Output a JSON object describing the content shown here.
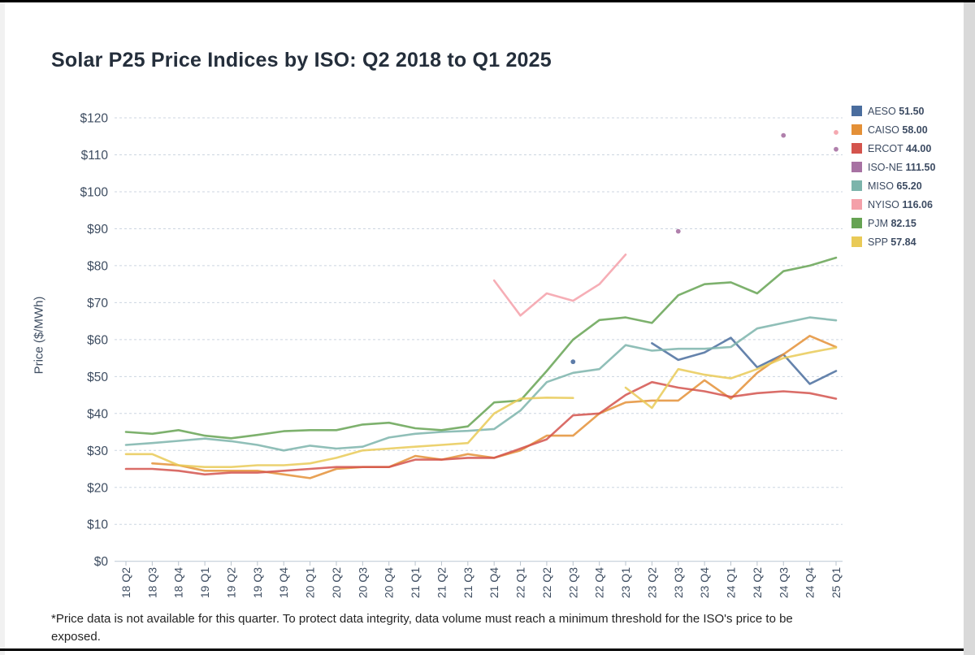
{
  "page": {
    "footnote_line1": "*Price data is not available for this quarter. To protect data integrity, data volume must reach a minimum threshold for the ISO's price to be",
    "footnote_line2": "exposed."
  },
  "chart_data": {
    "type": "line",
    "title": "Solar P25 Price Indices by ISO: Q2 2018 to Q1 2025",
    "xlabel": "",
    "ylabel": "Price ($/MWh)",
    "ylim": [
      0,
      120
    ],
    "grid": true,
    "legend_position": "right",
    "y_ticks": [
      "$0",
      "$10",
      "$20",
      "$30",
      "$40",
      "$50",
      "$60",
      "$70",
      "$80",
      "$90",
      "$100",
      "$110",
      "$120"
    ],
    "categories": [
      "18 Q2",
      "18 Q3",
      "18 Q4",
      "19 Q1",
      "19 Q2",
      "19 Q3",
      "19 Q4",
      "20 Q1",
      "20 Q2",
      "20 Q3",
      "20 Q4",
      "21 Q1",
      "21 Q2",
      "21 Q3",
      "21 Q4",
      "22 Q1",
      "22 Q2",
      "22 Q3",
      "22 Q4",
      "23 Q1",
      "23 Q2",
      "23 Q3",
      "23 Q4",
      "24 Q1",
      "24 Q2",
      "24 Q3",
      "24 Q4",
      "25 Q1"
    ],
    "series": [
      {
        "name": "AESO",
        "legend_value": "51.50",
        "color": "#4a6d9e",
        "values": [
          null,
          null,
          null,
          null,
          null,
          null,
          null,
          null,
          null,
          null,
          null,
          null,
          null,
          null,
          null,
          null,
          null,
          54,
          null,
          null,
          59,
          54.5,
          56.5,
          60.5,
          52.5,
          56,
          48,
          51.5
        ]
      },
      {
        "name": "CAISO",
        "legend_value": "58.00",
        "color": "#e49037",
        "values": [
          null,
          26.5,
          26,
          24.5,
          24.5,
          24.5,
          23.5,
          22.5,
          25,
          25.5,
          25.5,
          28.5,
          27.5,
          29,
          28,
          30,
          34,
          34,
          40,
          43,
          43.5,
          43.5,
          49,
          44,
          51,
          56,
          61,
          58
        ]
      },
      {
        "name": "ERCOT",
        "legend_value": "44.00",
        "color": "#d4544d",
        "values": [
          25,
          25,
          24.5,
          23.5,
          24,
          24,
          24.5,
          25,
          25.5,
          25.5,
          25.5,
          27.5,
          27.5,
          28,
          28,
          30.5,
          33,
          39.5,
          40,
          45,
          48.5,
          47,
          46,
          44.5,
          45.5,
          46,
          45.5,
          44
        ]
      },
      {
        "name": "ISO-NE",
        "legend_value": "111.50",
        "color": "#a772a3",
        "values": [
          null,
          null,
          null,
          null,
          null,
          null,
          null,
          null,
          null,
          null,
          null,
          null,
          null,
          null,
          null,
          null,
          null,
          null,
          null,
          null,
          null,
          89.3,
          null,
          null,
          null,
          115.25,
          null,
          111.5
        ]
      },
      {
        "name": "MISO",
        "legend_value": "65.20",
        "color": "#7cb4ab",
        "values": [
          31.5,
          32,
          32.6,
          33.2,
          32.5,
          31.5,
          30,
          31.3,
          30.5,
          31,
          33.5,
          34.5,
          35,
          35.3,
          35.8,
          40.8,
          48.5,
          51,
          52,
          58.5,
          57,
          57.5,
          57.5,
          58,
          63,
          64.5,
          66,
          65.2
        ]
      },
      {
        "name": "NYISO",
        "legend_value": "116.06",
        "color": "#f4a0a9",
        "values": [
          null,
          null,
          null,
          null,
          null,
          null,
          null,
          null,
          null,
          null,
          null,
          null,
          null,
          null,
          76,
          66.5,
          72.5,
          70.5,
          75,
          83,
          null,
          null,
          null,
          null,
          null,
          null,
          null,
          116.06
        ]
      },
      {
        "name": "PJM",
        "legend_value": "82.15",
        "color": "#66a353",
        "values": [
          35,
          34.5,
          35.5,
          34,
          33.3,
          34.2,
          35.2,
          35.5,
          35.5,
          37,
          37.5,
          36,
          35.5,
          36.5,
          43,
          43.5,
          51.5,
          60,
          65.3,
          66,
          64.5,
          72,
          75,
          75.5,
          72.5,
          78.5,
          80,
          82.15
        ]
      },
      {
        "name": "SPP",
        "legend_value": "57.84",
        "color": "#e9ca57",
        "values": [
          29,
          29,
          26,
          25.5,
          25.5,
          26,
          26,
          26.5,
          28,
          30,
          30.5,
          31,
          31.5,
          32,
          40,
          44,
          44.3,
          44.2,
          null,
          47,
          41.5,
          52,
          50.5,
          49.5,
          52,
          55,
          56.5,
          57.84
        ]
      }
    ]
  }
}
